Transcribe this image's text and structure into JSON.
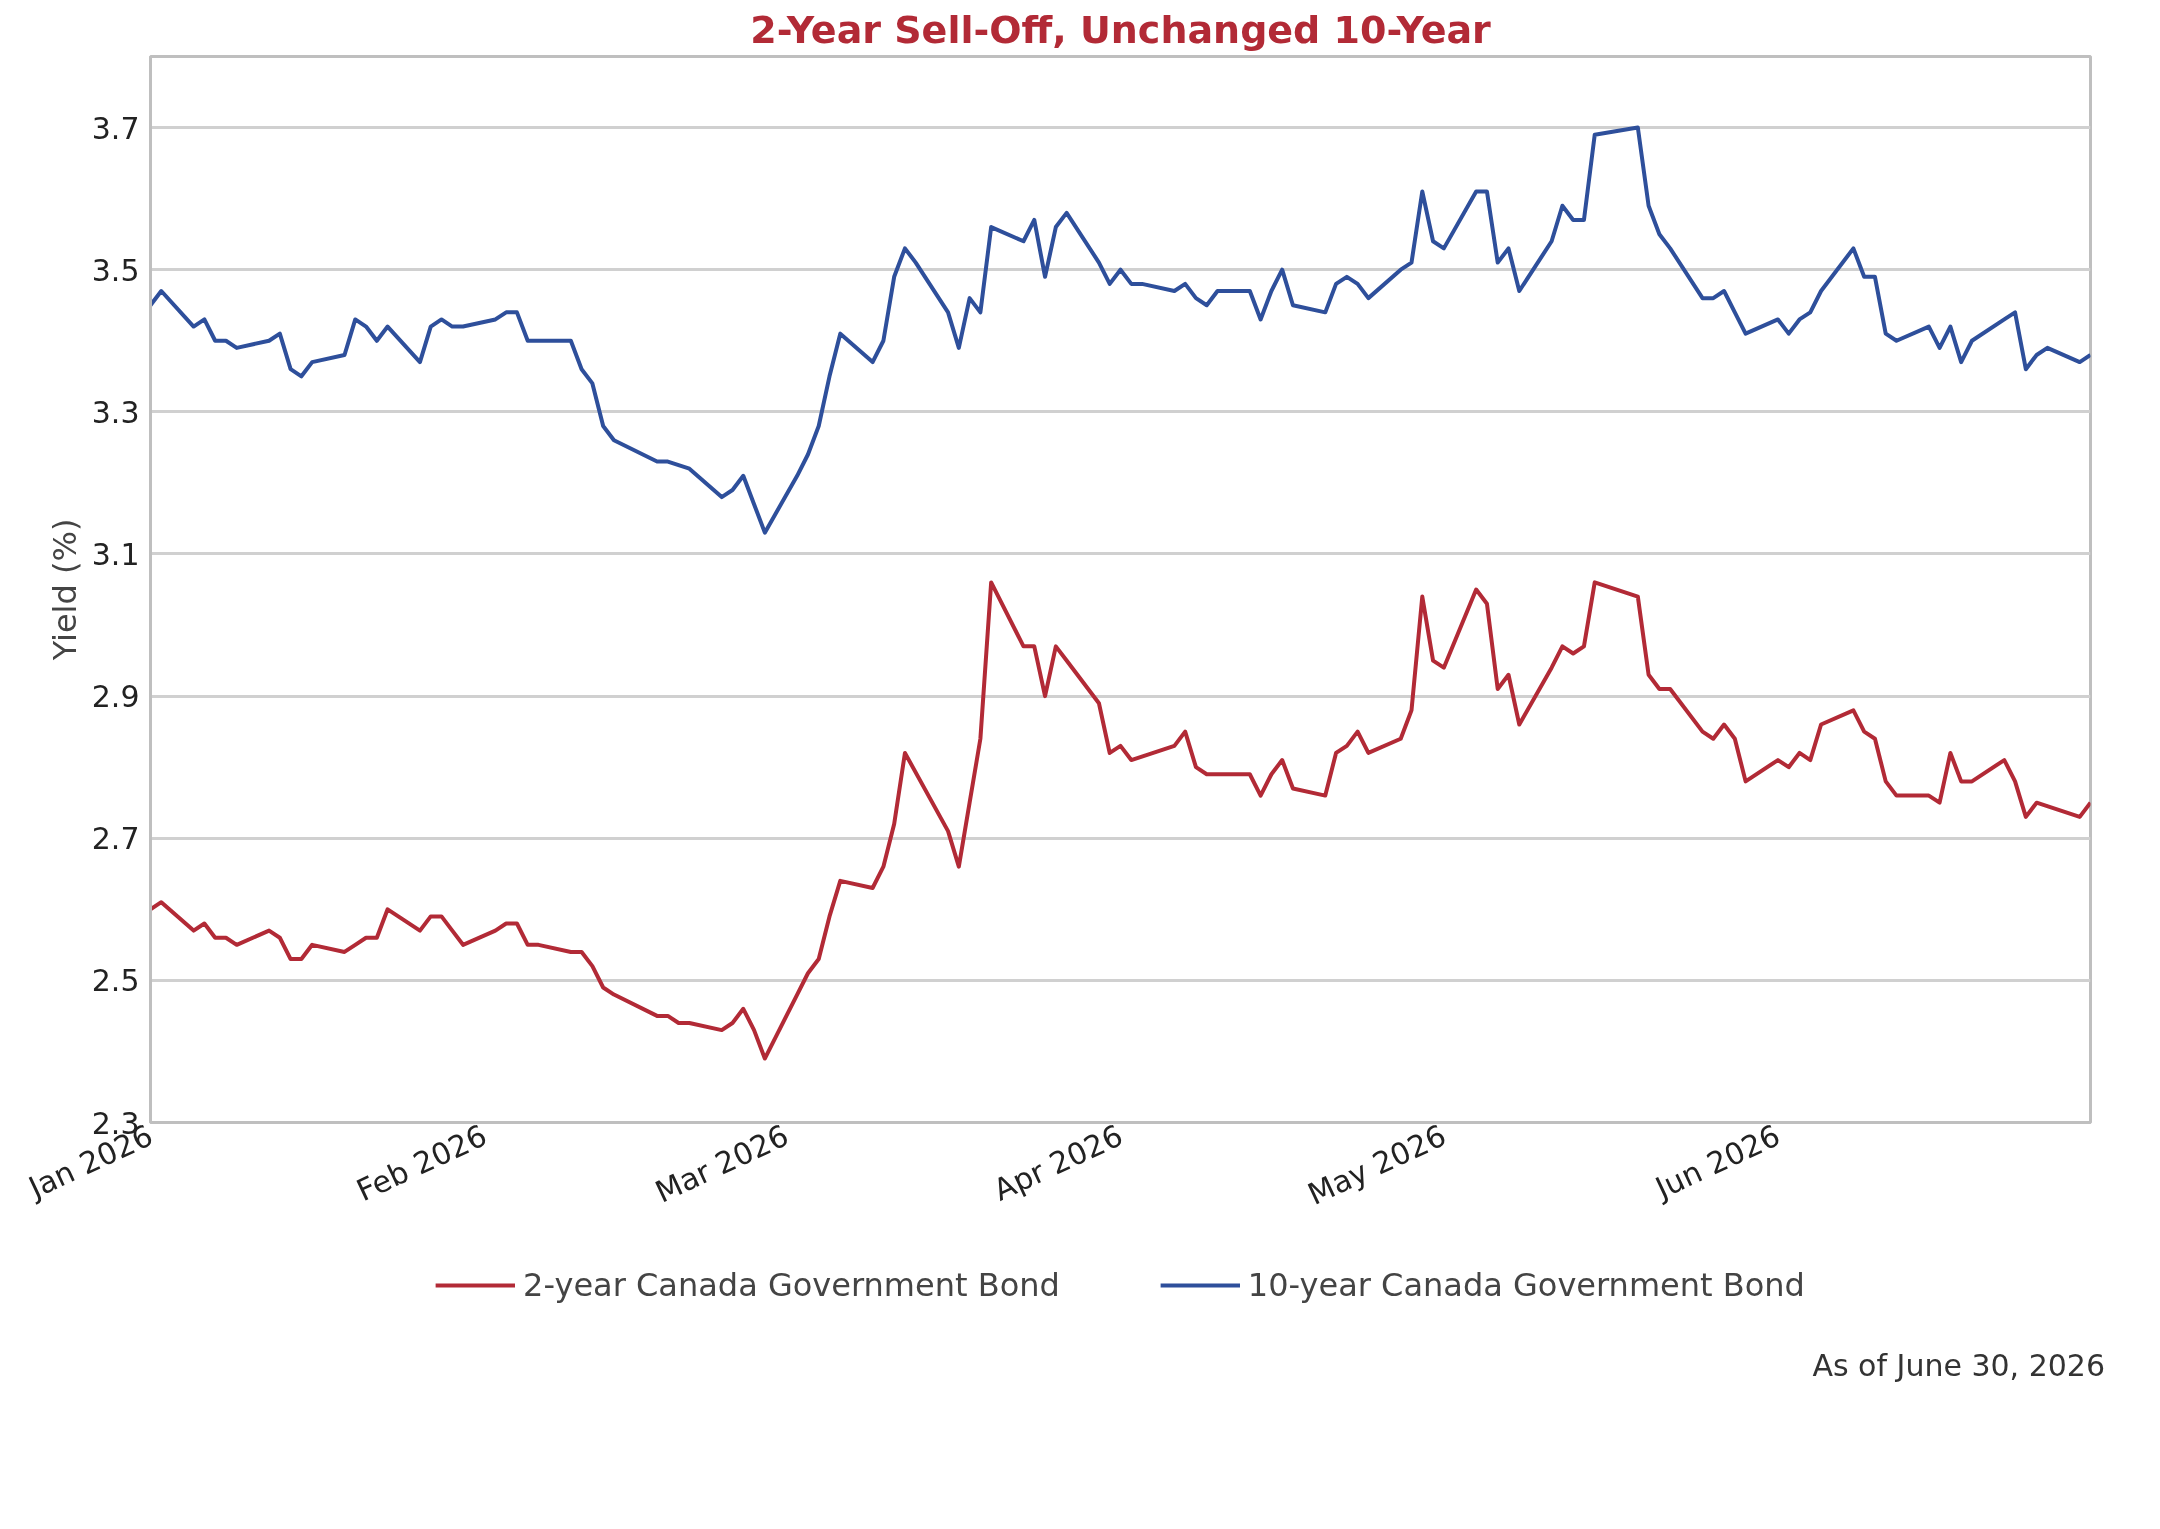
{
  "chart_data": {
    "type": "line",
    "title": "2-Year Sell-Off, Unchanged 10-Year",
    "ylabel": "Yield (%)",
    "annotations": [
      "As of June 30, 2026"
    ],
    "xlim": [
      "2026-01-01",
      "2026-06-30"
    ],
    "xticks": [
      {
        "value": "2026-01-01",
        "label": "Jan 2026"
      },
      {
        "value": "2026-02-01",
        "label": "Feb 2026"
      },
      {
        "value": "2026-03-01",
        "label": "Mar 2026"
      },
      {
        "value": "2026-04-01",
        "label": "Apr 2026"
      },
      {
        "value": "2026-05-01",
        "label": "May 2026"
      },
      {
        "value": "2026-06-01",
        "label": "Jun 2026"
      }
    ],
    "ylim": [
      2.3,
      3.8
    ],
    "yticks": [
      2.3,
      2.5,
      2.7,
      2.9,
      3.1,
      3.3,
      3.5,
      3.7
    ],
    "grid": "y",
    "legend": "bottom",
    "line_style": "solid",
    "series": [
      {
        "name": "2-year Canada Government Bond",
        "color": "#b22a36",
        "x": [
          "2026-01-01",
          "2026-01-02",
          "2026-01-05",
          "2026-01-06",
          "2026-01-07",
          "2026-01-08",
          "2026-01-09",
          "2026-01-12",
          "2026-01-13",
          "2026-01-14",
          "2026-01-15",
          "2026-01-16",
          "2026-01-19",
          "2026-01-20",
          "2026-01-21",
          "2026-01-22",
          "2026-01-23",
          "2026-01-26",
          "2026-01-27",
          "2026-01-28",
          "2026-01-29",
          "2026-01-30",
          "2026-02-02",
          "2026-02-03",
          "2026-02-04",
          "2026-02-05",
          "2026-02-06",
          "2026-02-09",
          "2026-02-10",
          "2026-02-11",
          "2026-02-12",
          "2026-02-13",
          "2026-02-17",
          "2026-02-18",
          "2026-02-19",
          "2026-02-20",
          "2026-02-23",
          "2026-02-24",
          "2026-02-25",
          "2026-02-26",
          "2026-02-27",
          "2026-03-02",
          "2026-03-03",
          "2026-03-04",
          "2026-03-05",
          "2026-03-06",
          "2026-03-09",
          "2026-03-10",
          "2026-03-11",
          "2026-03-12",
          "2026-03-16",
          "2026-03-17",
          "2026-03-18",
          "2026-03-19",
          "2026-03-20",
          "2026-03-23",
          "2026-03-24",
          "2026-03-25",
          "2026-03-26",
          "2026-03-27",
          "2026-03-30",
          "2026-03-31",
          "2026-04-01",
          "2026-04-02",
          "2026-04-06",
          "2026-04-07",
          "2026-04-08",
          "2026-04-09",
          "2026-04-13",
          "2026-04-14",
          "2026-04-15",
          "2026-04-16",
          "2026-04-17",
          "2026-04-20",
          "2026-04-21",
          "2026-04-22",
          "2026-04-23",
          "2026-04-24",
          "2026-04-27",
          "2026-04-28",
          "2026-04-29",
          "2026-04-30",
          "2026-05-01",
          "2026-05-04",
          "2026-05-05",
          "2026-05-06",
          "2026-05-07",
          "2026-05-08",
          "2026-05-11",
          "2026-05-12",
          "2026-05-13",
          "2026-05-14",
          "2026-05-15",
          "2026-05-19",
          "2026-05-20",
          "2026-05-21",
          "2026-05-22",
          "2026-05-25",
          "2026-05-26",
          "2026-05-27",
          "2026-05-28",
          "2026-05-29",
          "2026-06-01",
          "2026-06-02",
          "2026-06-03",
          "2026-06-04",
          "2026-06-05",
          "2026-06-08",
          "2026-06-09",
          "2026-06-10",
          "2026-06-11",
          "2026-06-12",
          "2026-06-15",
          "2026-06-16",
          "2026-06-17",
          "2026-06-18",
          "2026-06-19",
          "2026-06-22",
          "2026-06-23",
          "2026-06-24",
          "2026-06-25",
          "2026-06-29",
          "2026-06-30"
        ],
        "values": [
          2.6,
          2.61,
          2.57,
          2.58,
          2.56,
          2.56,
          2.55,
          2.57,
          2.56,
          2.53,
          2.53,
          2.55,
          2.54,
          2.55,
          2.56,
          2.56,
          2.6,
          2.57,
          2.59,
          2.59,
          2.57,
          2.55,
          2.57,
          2.58,
          2.58,
          2.55,
          2.55,
          2.54,
          2.54,
          2.52,
          2.49,
          2.48,
          2.45,
          2.45,
          2.44,
          2.44,
          2.43,
          2.44,
          2.46,
          2.43,
          2.39,
          2.48,
          2.51,
          2.53,
          2.59,
          2.64,
          2.63,
          2.66,
          2.72,
          2.82,
          2.71,
          2.66,
          2.75,
          2.84,
          3.06,
          2.97,
          2.97,
          2.9,
          2.97,
          2.95,
          2.89,
          2.82,
          2.83,
          2.81,
          2.83,
          2.85,
          2.8,
          2.79,
          2.79,
          2.76,
          2.79,
          2.81,
          2.77,
          2.76,
          2.82,
          2.83,
          2.85,
          2.82,
          2.84,
          2.88,
          3.04,
          2.95,
          2.94,
          3.05,
          3.03,
          2.91,
          2.93,
          2.86,
          2.94,
          2.97,
          2.96,
          2.97,
          3.06,
          3.04,
          2.93,
          2.91,
          2.91,
          2.85,
          2.84,
          2.86,
          2.84,
          2.78,
          2.81,
          2.8,
          2.82,
          2.81,
          2.86,
          2.88,
          2.85,
          2.84,
          2.78,
          2.76,
          2.76,
          2.75,
          2.82,
          2.78,
          2.78,
          2.81,
          2.78,
          2.73,
          2.75,
          2.73,
          2.75
        ]
      },
      {
        "name": "10-year Canada Government Bond",
        "color": "#2e4f9b",
        "x": [
          "2026-01-01",
          "2026-01-02",
          "2026-01-05",
          "2026-01-06",
          "2026-01-07",
          "2026-01-08",
          "2026-01-09",
          "2026-01-12",
          "2026-01-13",
          "2026-01-14",
          "2026-01-15",
          "2026-01-16",
          "2026-01-19",
          "2026-01-20",
          "2026-01-21",
          "2026-01-22",
          "2026-01-23",
          "2026-01-26",
          "2026-01-27",
          "2026-01-28",
          "2026-01-29",
          "2026-01-30",
          "2026-02-02",
          "2026-02-03",
          "2026-02-04",
          "2026-02-05",
          "2026-02-06",
          "2026-02-09",
          "2026-02-10",
          "2026-02-11",
          "2026-02-12",
          "2026-02-13",
          "2026-02-17",
          "2026-02-18",
          "2026-02-20",
          "2026-02-23",
          "2026-02-24",
          "2026-02-25",
          "2026-02-26",
          "2026-02-27",
          "2026-03-02",
          "2026-03-03",
          "2026-03-04",
          "2026-03-05",
          "2026-03-06",
          "2026-03-09",
          "2026-03-10",
          "2026-03-11",
          "2026-03-12",
          "2026-03-13",
          "2026-03-16",
          "2026-03-17",
          "2026-03-18",
          "2026-03-19",
          "2026-03-20",
          "2026-03-23",
          "2026-03-24",
          "2026-03-25",
          "2026-03-26",
          "2026-03-27",
          "2026-03-30",
          "2026-03-31",
          "2026-04-01",
          "2026-04-02",
          "2026-04-03",
          "2026-04-06",
          "2026-04-07",
          "2026-04-08",
          "2026-04-09",
          "2026-04-10",
          "2026-04-13",
          "2026-04-14",
          "2026-04-15",
          "2026-04-16",
          "2026-04-17",
          "2026-04-20",
          "2026-04-21",
          "2026-04-22",
          "2026-04-23",
          "2026-04-24",
          "2026-04-27",
          "2026-04-28",
          "2026-04-29",
          "2026-04-30",
          "2026-05-01",
          "2026-05-04",
          "2026-05-05",
          "2026-05-06",
          "2026-05-07",
          "2026-05-08",
          "2026-05-11",
          "2026-05-12",
          "2026-05-13",
          "2026-05-14",
          "2026-05-15",
          "2026-05-19",
          "2026-05-20",
          "2026-05-21",
          "2026-05-22",
          "2026-05-25",
          "2026-05-26",
          "2026-05-27",
          "2026-05-28",
          "2026-05-29",
          "2026-06-01",
          "2026-06-02",
          "2026-06-03",
          "2026-06-04",
          "2026-06-05",
          "2026-06-08",
          "2026-06-09",
          "2026-06-10",
          "2026-06-11",
          "2026-06-12",
          "2026-06-15",
          "2026-06-16",
          "2026-06-17",
          "2026-06-18",
          "2026-06-19",
          "2026-06-22",
          "2026-06-23",
          "2026-06-24",
          "2026-06-25",
          "2026-06-26",
          "2026-06-29",
          "2026-06-30"
        ],
        "values": [
          3.45,
          3.47,
          3.42,
          3.43,
          3.4,
          3.4,
          3.39,
          3.4,
          3.41,
          3.36,
          3.35,
          3.37,
          3.38,
          3.43,
          3.42,
          3.4,
          3.42,
          3.37,
          3.42,
          3.43,
          3.42,
          3.42,
          3.43,
          3.44,
          3.44,
          3.4,
          3.4,
          3.4,
          3.36,
          3.34,
          3.28,
          3.26,
          3.23,
          3.23,
          3.22,
          3.18,
          3.19,
          3.21,
          3.17,
          3.13,
          3.21,
          3.24,
          3.28,
          3.35,
          3.41,
          3.37,
          3.4,
          3.49,
          3.53,
          3.51,
          3.44,
          3.39,
          3.46,
          3.44,
          3.56,
          3.54,
          3.57,
          3.49,
          3.56,
          3.58,
          3.51,
          3.48,
          3.5,
          3.48,
          3.48,
          3.47,
          3.48,
          3.46,
          3.45,
          3.47,
          3.47,
          3.43,
          3.47,
          3.5,
          3.45,
          3.44,
          3.48,
          3.49,
          3.48,
          3.46,
          3.5,
          3.51,
          3.61,
          3.54,
          3.53,
          3.61,
          3.61,
          3.51,
          3.53,
          3.47,
          3.54,
          3.59,
          3.57,
          3.57,
          3.69,
          3.7,
          3.59,
          3.55,
          3.53,
          3.46,
          3.46,
          3.47,
          3.44,
          3.41,
          3.43,
          3.41,
          3.43,
          3.44,
          3.47,
          3.53,
          3.49,
          3.49,
          3.41,
          3.4,
          3.42,
          3.39,
          3.42,
          3.37,
          3.4,
          3.43,
          3.44,
          3.36,
          3.38,
          3.39,
          3.37,
          3.38
        ]
      }
    ]
  }
}
